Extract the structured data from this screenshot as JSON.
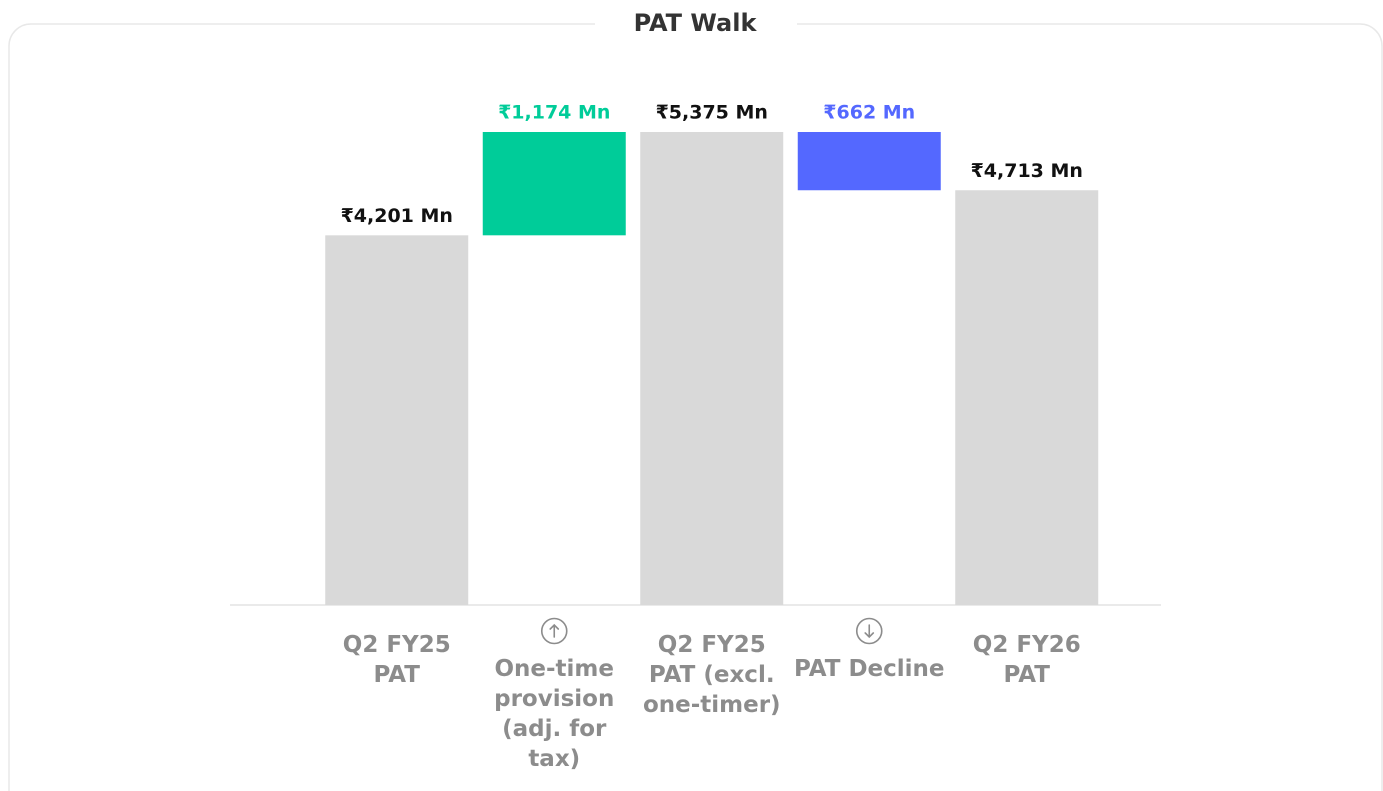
{
  "chart_data": {
    "type": "waterfall",
    "title": "PAT Walk",
    "categories": [
      "Q2 FY25 PAT",
      "One-time provision (adj. for tax)",
      "Q2 FY25 PAT (excl. one-timer)",
      "PAT Decline",
      "Q2 FY26 PAT"
    ],
    "values": [
      4201,
      1174,
      5375,
      -662,
      4713
    ],
    "value_labels": [
      "₹4,201 Mn",
      "₹1,174 Mn",
      "₹5,375 Mn",
      "₹662 Mn",
      "₹4,713 Mn"
    ],
    "measures": [
      "absolute",
      "relative",
      "total",
      "relative",
      "total"
    ],
    "colors": {
      "total": "#d9d9d9",
      "increase": "#00cc99",
      "decrease": "#5468ff"
    },
    "ylim": [
      0,
      6000
    ]
  }
}
